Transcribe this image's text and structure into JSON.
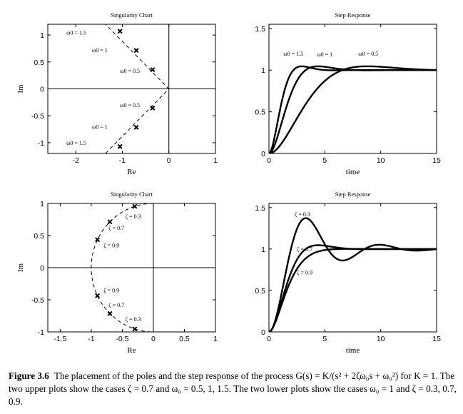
{
  "chart_data": [
    {
      "id": "p1",
      "type": "scatter",
      "title": "Singularity Chart",
      "xlabel": "Re",
      "ylabel": "Im",
      "xlim": [
        -2.6,
        1
      ],
      "ylim": [
        -1.2,
        1.2
      ],
      "xticks": [
        -2,
        -1,
        0,
        1
      ],
      "yticks": [
        -1,
        -0.5,
        0,
        0.5,
        1
      ],
      "tick_labels_x": [
        "-2",
        "-1",
        "0",
        "1"
      ],
      "tick_labels_y": [
        "-1",
        "-0.5",
        "0",
        "0.5",
        "1"
      ],
      "grid": false,
      "axes_lines": true,
      "guide": {
        "style": "dashed",
        "points": [
          [
            -1.36,
            -1.2
          ],
          [
            0,
            0
          ],
          [
            -1.36,
            1.2
          ]
        ]
      },
      "points": [
        {
          "x": -1.05,
          "y": 1.071,
          "label": "ω0 = 1.5",
          "label_x": -2.2,
          "label_y": 1.05
        },
        {
          "x": -0.7,
          "y": 0.714,
          "label": "ω0 = 1",
          "label_x": -1.65,
          "label_y": 0.72
        },
        {
          "x": -0.35,
          "y": 0.357,
          "label": "ω0 = 0.5",
          "label_x": -1.05,
          "label_y": 0.34
        },
        {
          "x": -0.35,
          "y": -0.357,
          "label": "ω0 = 0.5",
          "label_x": -1.05,
          "label_y": -0.3
        },
        {
          "x": -0.7,
          "y": -0.714,
          "label": "ω0 = 1",
          "label_x": -1.65,
          "label_y": -0.7
        },
        {
          "x": -1.05,
          "y": -1.071,
          "label": "ω0 = 1.5",
          "label_x": -2.2,
          "label_y": -1.0
        }
      ]
    },
    {
      "id": "p2",
      "type": "line",
      "title": "Step Response",
      "xlabel": "time",
      "ylabel": "",
      "xlim": [
        0,
        15
      ],
      "ylim": [
        0,
        1.55
      ],
      "xticks": [
        0,
        5,
        10,
        15
      ],
      "yticks": [
        0,
        0.5,
        1,
        1.5
      ],
      "tick_labels_x": [
        "0",
        "5",
        "10",
        "15"
      ],
      "tick_labels_y": [
        "0",
        "0.5",
        "1",
        "1.5"
      ],
      "grid": false,
      "series": [
        {
          "label": "ω0 = 1.5",
          "zeta": 0.7,
          "w0": 1.5,
          "label_x": 1.3,
          "label_y": 1.2
        },
        {
          "label": "ω0 = 1",
          "zeta": 0.7,
          "w0": 1.0,
          "label_x": 4.3,
          "label_y": 1.19
        },
        {
          "label": "ω0 = 0.5",
          "zeta": 0.7,
          "w0": 0.5,
          "label_x": 8.0,
          "label_y": 1.2
        }
      ]
    },
    {
      "id": "p3",
      "type": "scatter",
      "title": "Singularity Chart",
      "xlabel": "Re",
      "ylabel": "Im",
      "xlim": [
        -1.7,
        1
      ],
      "ylim": [
        -1,
        1
      ],
      "xticks": [
        -1.5,
        -1,
        -0.5,
        0,
        0.5,
        1
      ],
      "yticks": [
        -1,
        -0.5,
        0,
        0.5,
        1
      ],
      "tick_labels_x": [
        "-1.5",
        "-1",
        "-0.5",
        "0",
        "0.5",
        "1"
      ],
      "tick_labels_y": [
        "-1",
        "-0.5",
        "0",
        "0.5",
        "1"
      ],
      "grid": false,
      "axes_lines": true,
      "guide": {
        "style": "dashed",
        "circle_radius": 1
      },
      "points": [
        {
          "x": -0.3,
          "y": 0.954,
          "label": "ζ = 0.3",
          "label_x": -0.45,
          "label_y": 0.8
        },
        {
          "x": -0.7,
          "y": 0.714,
          "label": "ζ = 0.7",
          "label_x": -0.72,
          "label_y": 0.62
        },
        {
          "x": -0.9,
          "y": 0.436,
          "label": "ζ = 0.9",
          "label_x": -0.8,
          "label_y": 0.35
        },
        {
          "x": -0.9,
          "y": -0.436,
          "label": "ζ = 0.9",
          "label_x": -0.8,
          "label_y": -0.35
        },
        {
          "x": -0.7,
          "y": -0.714,
          "label": "ζ = 0.7",
          "label_x": -0.72,
          "label_y": -0.58
        },
        {
          "x": -0.3,
          "y": -0.954,
          "label": "ζ = 0.3",
          "label_x": -0.45,
          "label_y": -0.8
        }
      ]
    },
    {
      "id": "p4",
      "type": "line",
      "title": "Step Response",
      "xlabel": "time",
      "ylabel": "",
      "xlim": [
        0,
        15
      ],
      "ylim": [
        0,
        1.55
      ],
      "xticks": [
        0,
        5,
        10,
        15
      ],
      "yticks": [
        0,
        0.5,
        1,
        1.5
      ],
      "tick_labels_x": [
        "0",
        "5",
        "10",
        "15"
      ],
      "tick_labels_y": [
        "0",
        "0.5",
        "1",
        "1.5"
      ],
      "grid": false,
      "series": [
        {
          "label": "ζ = 0.3",
          "zeta": 0.3,
          "w0": 1.0,
          "label_x": 2.3,
          "label_y": 1.42
        },
        {
          "label": "ζ = 0.7",
          "zeta": 0.7,
          "w0": 1.0,
          "label_x": 2.5,
          "label_y": 1.0
        },
        {
          "label": "ζ = 0.9",
          "zeta": 0.9,
          "w0": 1.0,
          "label_x": 2.5,
          "label_y": 0.72
        }
      ]
    }
  ],
  "caption": {
    "label": "Figure 3.6",
    "text": "The placement of the poles and the step response of the process G(s) = K/(s² + 2ζω₀s + ω₀²) for K = 1. The two upper plots show the cases ζ = 0.7 and ω₀ = 0.5, 1, 1.5. The two lower plots show the cases ω₀ = 1 and ζ = 0.3, 0.7, 0.9."
  }
}
